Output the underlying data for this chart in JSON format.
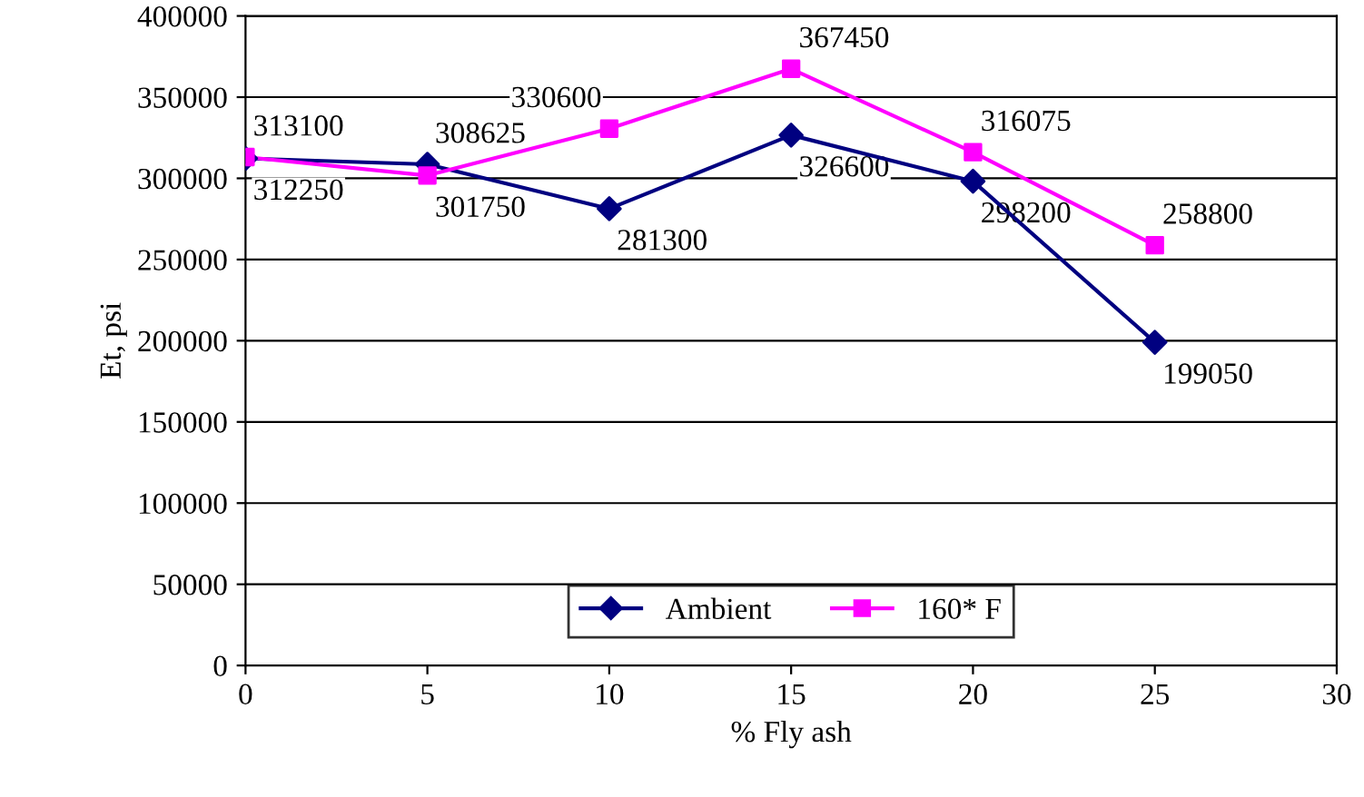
{
  "chart_data": {
    "type": "line",
    "xlabel": "% Fly ash",
    "ylabel": "Et, psi",
    "x": [
      0,
      5,
      10,
      15,
      20,
      25
    ],
    "series": [
      {
        "name": "Ambient",
        "color": "#000080",
        "marker": "diamond",
        "values": [
          312250,
          308625,
          281300,
          326600,
          298200,
          199050
        ],
        "value_labels": [
          "312250",
          "308625",
          "281300",
          "326600",
          "298200",
          "199050"
        ]
      },
      {
        "name": "160* F",
        "color": "#ff00ff",
        "marker": "square",
        "values": [
          313100,
          301750,
          330600,
          367450,
          316075,
          258800
        ],
        "value_labels": [
          "313100",
          "301750",
          "330600",
          "367450",
          "316075",
          "258800"
        ]
      }
    ],
    "xlim": [
      0,
      30
    ],
    "xticks": [
      0,
      5,
      10,
      15,
      20,
      25,
      30
    ],
    "ylim": [
      0,
      400000
    ],
    "yticks": [
      0,
      50000,
      100000,
      150000,
      200000,
      250000,
      300000,
      350000,
      400000
    ],
    "grid": "y",
    "legend": "bottom",
    "line_style": "solid"
  }
}
